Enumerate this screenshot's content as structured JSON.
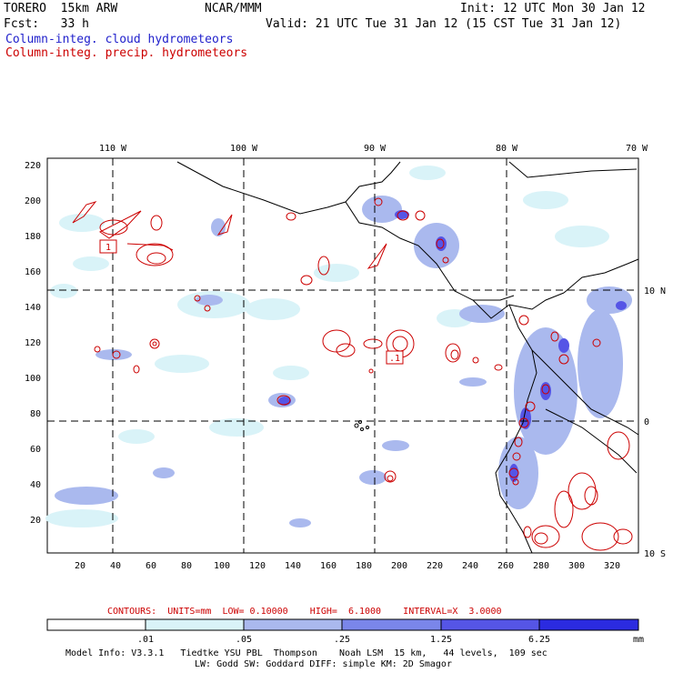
{
  "header": {
    "model": "TORERO  15km ARW",
    "org": "NCAR/MMM",
    "init": "Init: 12 UTC Mon 30 Jan 12",
    "fcst": "Fcst:   33 h",
    "valid": "Valid: 21 UTC Tue 31 Jan 12 (15 CST Tue 31 Jan 12)",
    "field1": "Column-integ. cloud hydrometeors",
    "field2": "Column-integ. precip. hydrometeors"
  },
  "map": {
    "lon_labels": [
      "110 W",
      "100 W",
      "90 W",
      "80 W",
      "70 W"
    ],
    "lat_labels": [
      "10 N",
      "0",
      "10 S"
    ],
    "y_ticks": [
      "220",
      "200",
      "180",
      "160",
      "140",
      "120",
      "100",
      "80",
      "60",
      "40",
      "20"
    ],
    "x_ticks": [
      "20",
      "40",
      "60",
      "80",
      "100",
      "120",
      "140",
      "160",
      "180",
      "200",
      "220",
      "240",
      "260",
      "280",
      "300",
      "320"
    ],
    "box_labels": [
      "1",
      ".1"
    ]
  },
  "contour_info": {
    "label": "CONTOURS:",
    "units": "UNITS=mm",
    "low": "LOW= 0.10000",
    "high": "HIGH=  6.1000",
    "interval": "INTERVAL=X  3.0000"
  },
  "colorbar": {
    "ticks": [
      ".01",
      ".05",
      ".25",
      "1.25",
      "6.25"
    ],
    "unit": "mm",
    "colors": [
      "#ffffff",
      "#d9f3f8",
      "#aab9ee",
      "#7a86ea",
      "#5555e6",
      "#2b2be0"
    ]
  },
  "footer": {
    "line1": "Model Info: V3.3.1   Tiedtke YSU PBL  Thompson    Noah LSM  15 km,   44 levels,  109 sec",
    "line2": "LW: Godd SW: Goddard DIFF: simple KM: 2D Smagor"
  }
}
